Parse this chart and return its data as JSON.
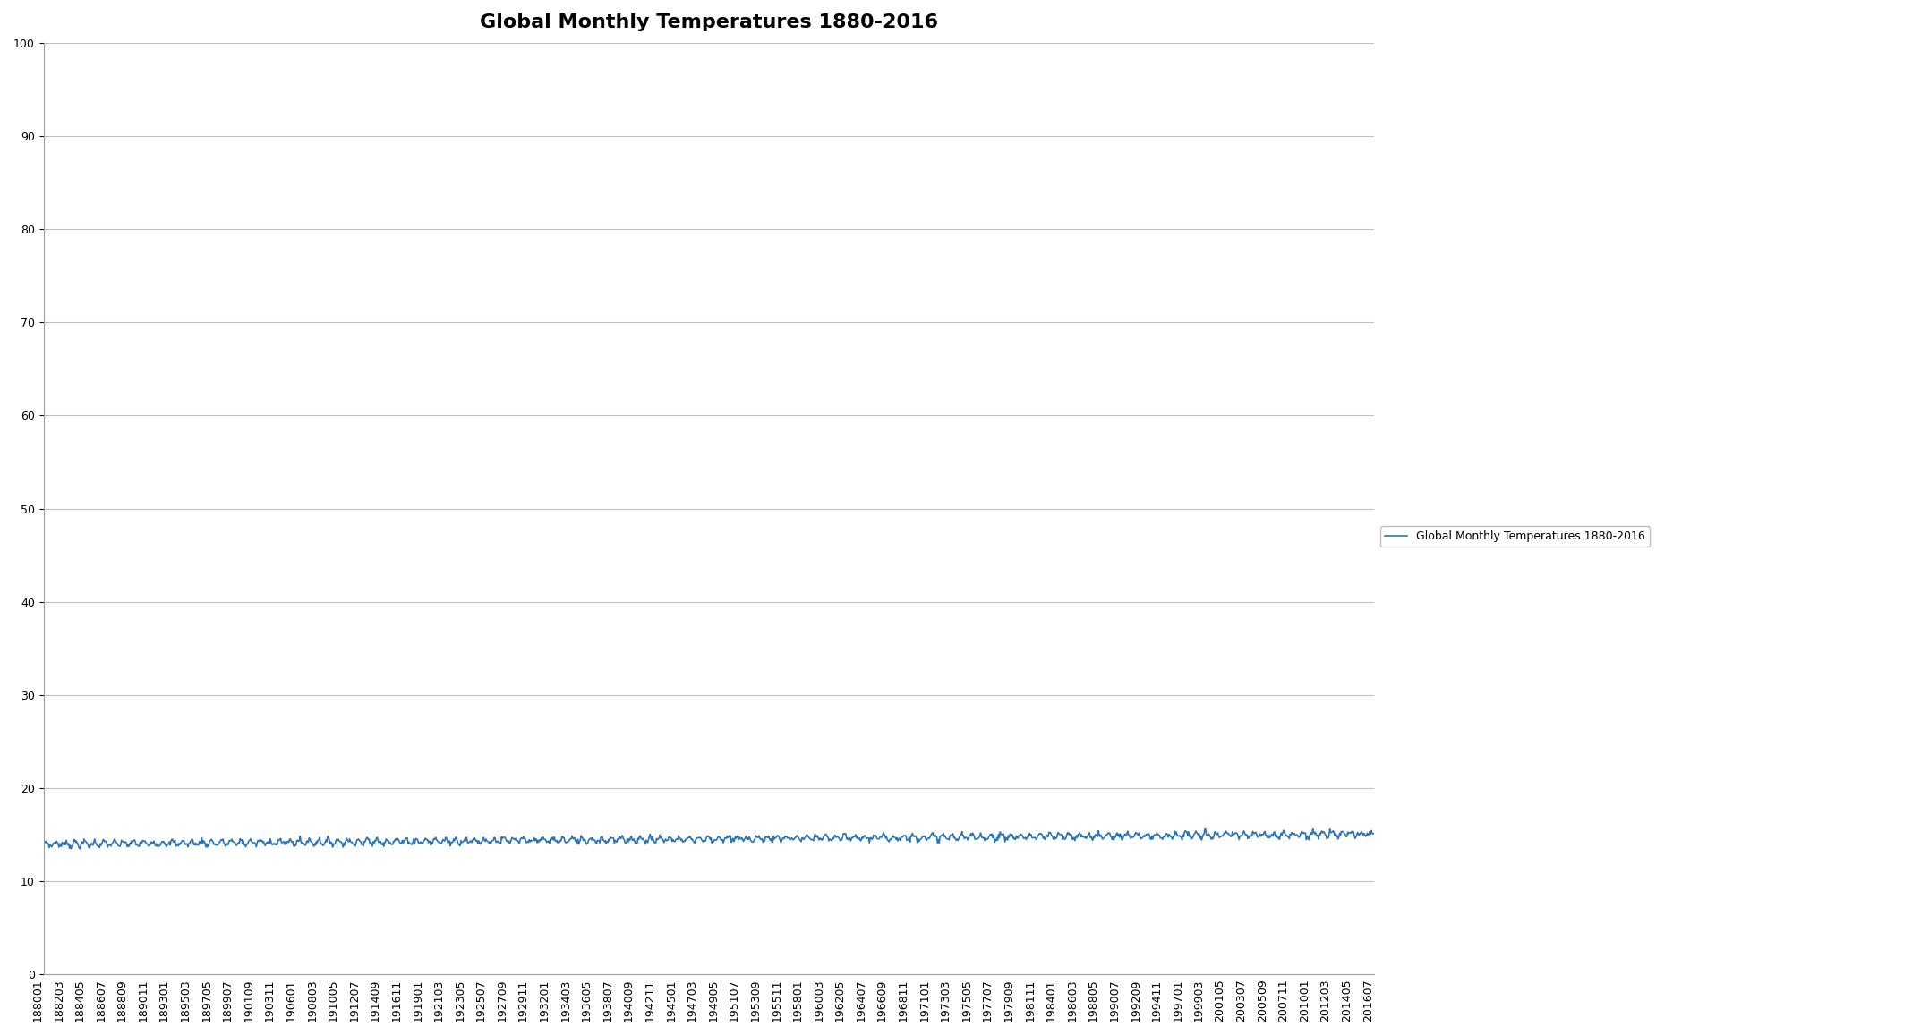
{
  "title": "Global Monthly Temperatures 1880-2016",
  "legend_label": "Global Monthly Temperatures 1880-2016",
  "line_color": "#2E75B6",
  "ylim": [
    0,
    100
  ],
  "yticks": [
    0,
    10,
    20,
    30,
    40,
    50,
    60,
    70,
    80,
    90,
    100
  ],
  "base_temp": 14.0,
  "amplitude": 0.25,
  "trend": 0.008,
  "start_year": 1880,
  "end_year": 2016,
  "end_month": 7,
  "background_color": "#ffffff",
  "grid_color": "#C0C0C0",
  "title_fontsize": 16,
  "tick_fontsize": 9,
  "legend_fontsize": 9,
  "line_width": 1.2,
  "xlabel_rotation": 90,
  "x_tick_labels": [
    "188001",
    "188203",
    "188405",
    "188607",
    "188809",
    "189011",
    "189301",
    "189503",
    "189705",
    "189907",
    "190109",
    "190311",
    "190601",
    "190803",
    "191005",
    "191207",
    "191409",
    "191611",
    "191901",
    "192103",
    "192305",
    "192507",
    "192709",
    "192911",
    "193201",
    "193403",
    "193605",
    "193807",
    "194009",
    "194211",
    "194501",
    "194703",
    "194905",
    "195107",
    "195309",
    "195511",
    "195801",
    "196003",
    "196205",
    "196407",
    "196609",
    "196811",
    "197101",
    "197303",
    "197505",
    "197707",
    "197909",
    "198111",
    "198401",
    "198603",
    "198805",
    "199007",
    "199209",
    "199411",
    "199701",
    "199903",
    "200105",
    "200307",
    "200509",
    "200711",
    "201001",
    "201203",
    "201405",
    "201607"
  ]
}
